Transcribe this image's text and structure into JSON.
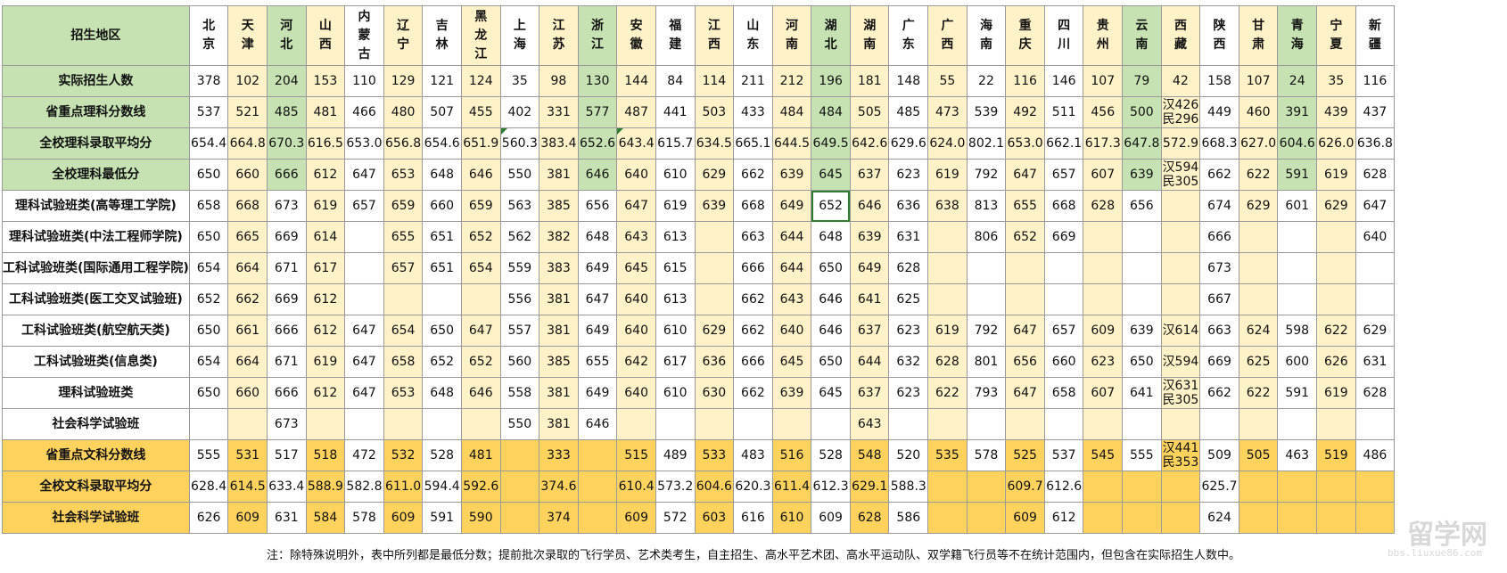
{
  "header_label": "招生地区",
  "regions": [
    [
      "北",
      "京"
    ],
    [
      "天",
      "津"
    ],
    [
      "河",
      "北"
    ],
    [
      "山",
      "西"
    ],
    [
      "内",
      "蒙",
      "古"
    ],
    [
      "辽",
      "宁"
    ],
    [
      "吉",
      "林"
    ],
    [
      "黑",
      "龙",
      "江"
    ],
    [
      "上",
      "海"
    ],
    [
      "江",
      "苏"
    ],
    [
      "浙",
      "江"
    ],
    [
      "安",
      "徽"
    ],
    [
      "福",
      "建"
    ],
    [
      "江",
      "西"
    ],
    [
      "山",
      "东"
    ],
    [
      "河",
      "南"
    ],
    [
      "湖",
      "北"
    ],
    [
      "湖",
      "南"
    ],
    [
      "广",
      "东"
    ],
    [
      "广",
      "西"
    ],
    [
      "海",
      "南"
    ],
    [
      "重",
      "庆"
    ],
    [
      "四",
      "川"
    ],
    [
      "贵",
      "州"
    ],
    [
      "云",
      "南"
    ],
    [
      "西",
      "藏"
    ],
    [
      "陕",
      "西"
    ],
    [
      "甘",
      "肃"
    ],
    [
      "青",
      "海"
    ],
    [
      "宁",
      "夏"
    ],
    [
      "新",
      "疆"
    ]
  ],
  "rows": [
    {
      "label": "实际招生人数",
      "values": [
        "378",
        "102",
        "204",
        "153",
        "110",
        "129",
        "121",
        "124",
        "35",
        "98",
        "130",
        "144",
        "84",
        "114",
        "211",
        "212",
        "196",
        "181",
        "148",
        "55",
        "22",
        "116",
        "146",
        "107",
        "79",
        "42",
        "158",
        "107",
        "24",
        "35",
        "116"
      ]
    },
    {
      "label": "省重点理科分数线",
      "values": [
        "537",
        "521",
        "485",
        "481",
        "466",
        "480",
        "507",
        "455",
        "402",
        "331",
        "577",
        "487",
        "441",
        "503",
        "433",
        "484",
        "484",
        "505",
        "485",
        "473",
        "539",
        "492",
        "511",
        "456",
        "500",
        "汉426\n民296",
        "449",
        "460",
        "391",
        "439",
        "437"
      ]
    },
    {
      "label": "全校理科录取平均分",
      "values": [
        "654.4",
        "664.8",
        "670.3",
        "616.5",
        "653.0",
        "656.8",
        "654.6",
        "651.9",
        "560.3",
        "383.4",
        "652.6",
        "643.4",
        "615.7",
        "634.5",
        "665.1",
        "644.5",
        "649.5",
        "642.6",
        "629.6",
        "624.0",
        "802.1",
        "653.0",
        "662.1",
        "617.3",
        "647.8",
        "572.9",
        "668.3",
        "627.0",
        "604.6",
        "626.0",
        "636.8"
      ]
    },
    {
      "label": "全校理科最低分",
      "values": [
        "650",
        "660",
        "666",
        "612",
        "647",
        "653",
        "648",
        "646",
        "550",
        "381",
        "646",
        "640",
        "610",
        "629",
        "662",
        "639",
        "645",
        "637",
        "623",
        "619",
        "792",
        "647",
        "657",
        "607",
        "639",
        "汉594\n民305",
        "662",
        "622",
        "591",
        "619",
        "628"
      ]
    },
    {
      "label": "理科试验班类(高等理工学院)",
      "values": [
        "658",
        "668",
        "673",
        "619",
        "657",
        "659",
        "660",
        "659",
        "563",
        "385",
        "656",
        "647",
        "619",
        "639",
        "668",
        "649",
        "652",
        "646",
        "636",
        "638",
        "813",
        "655",
        "668",
        "628",
        "656",
        "",
        "674",
        "629",
        "601",
        "629",
        "647"
      ]
    },
    {
      "label": "理科试验班类(中法工程师学院)",
      "values": [
        "650",
        "665",
        "669",
        "614",
        "",
        "655",
        "651",
        "652",
        "562",
        "382",
        "648",
        "643",
        "613",
        "",
        "663",
        "644",
        "648",
        "639",
        "631",
        "",
        "806",
        "652",
        "669",
        "",
        "",
        "",
        "666",
        "",
        "",
        "",
        "640"
      ]
    },
    {
      "label": "工科试验班类(国际通用工程学院)",
      "values": [
        "654",
        "664",
        "671",
        "617",
        "",
        "657",
        "651",
        "654",
        "559",
        "383",
        "649",
        "645",
        "615",
        "",
        "666",
        "644",
        "650",
        "649",
        "628",
        "",
        "",
        "",
        "",
        "",
        "",
        "",
        "673",
        "",
        "",
        "",
        ""
      ]
    },
    {
      "label": "工科试验班类(医工交叉试验班)",
      "values": [
        "652",
        "662",
        "669",
        "612",
        "",
        "",
        "",
        "",
        "556",
        "381",
        "647",
        "640",
        "613",
        "",
        "662",
        "643",
        "646",
        "641",
        "625",
        "",
        "",
        "",
        "",
        "",
        "",
        "",
        "667",
        "",
        "",
        "",
        ""
      ]
    },
    {
      "label": "工科试验班类(航空航天类)",
      "values": [
        "650",
        "661",
        "666",
        "612",
        "647",
        "654",
        "650",
        "647",
        "557",
        "381",
        "649",
        "640",
        "610",
        "629",
        "662",
        "640",
        "646",
        "637",
        "623",
        "619",
        "792",
        "647",
        "657",
        "609",
        "639",
        "汉614",
        "663",
        "624",
        "598",
        "622",
        "629"
      ]
    },
    {
      "label": "工科试验班类(信息类)",
      "values": [
        "654",
        "664",
        "671",
        "619",
        "647",
        "658",
        "652",
        "652",
        "560",
        "385",
        "655",
        "642",
        "617",
        "636",
        "666",
        "645",
        "650",
        "644",
        "632",
        "628",
        "801",
        "656",
        "660",
        "623",
        "650",
        "汉594",
        "669",
        "625",
        "600",
        "626",
        "631"
      ]
    },
    {
      "label": "理科试验班类",
      "values": [
        "650",
        "660",
        "666",
        "612",
        "647",
        "653",
        "648",
        "646",
        "558",
        "381",
        "649",
        "640",
        "610",
        "630",
        "662",
        "639",
        "645",
        "637",
        "623",
        "622",
        "793",
        "647",
        "658",
        "607",
        "641",
        "汉631\n民305",
        "662",
        "622",
        "591",
        "619",
        "628"
      ]
    },
    {
      "label": "社会科学试验班",
      "values": [
        "",
        "",
        "673",
        "",
        "",
        "",
        "",
        "",
        "550",
        "381",
        "646",
        "",
        "",
        "",
        "",
        "",
        "",
        "643",
        "",
        "",
        "",
        "",
        "",
        "",
        "",
        "",
        "",
        "",
        "",
        "",
        ""
      ]
    },
    {
      "label": "省重点文科分数线",
      "values": [
        "555",
        "531",
        "517",
        "518",
        "472",
        "532",
        "528",
        "481",
        "",
        "333",
        "",
        "515",
        "489",
        "533",
        "483",
        "516",
        "528",
        "548",
        "520",
        "535",
        "578",
        "525",
        "537",
        "545",
        "555",
        "汉441\n民353",
        "509",
        "505",
        "463",
        "519",
        "486"
      ]
    },
    {
      "label": "全校文科录取平均分",
      "values": [
        "628.4",
        "614.5",
        "633.4",
        "588.9",
        "582.8",
        "611.0",
        "594.4",
        "592.6",
        "",
        "374.6",
        "",
        "610.4",
        "573.2",
        "604.6",
        "620.3",
        "611.4",
        "612.3",
        "629.1",
        "588.3",
        "",
        "",
        "609.7",
        "612.6",
        "",
        "",
        "",
        "625.7",
        "",
        "",
        "",
        ""
      ]
    },
    {
      "label": "社会科学试验班",
      "values": [
        "626",
        "609",
        "631",
        "584",
        "578",
        "609",
        "591",
        "590",
        "",
        "374",
        "",
        "609",
        "572",
        "603",
        "616",
        "610",
        "609",
        "628",
        "586",
        "",
        "",
        "609",
        "612",
        "",
        "",
        "",
        "624",
        "",
        "",
        "",
        ""
      ]
    }
  ],
  "note": "注：除特殊说明外，表中所列都是最低分数；提前批次录取的飞行学员、艺术类考生，自主招生、高水平艺术团、高水平运动队、双学籍飞行员等不在统计范围内，但包含在实际招生人数中。",
  "watermark": {
    "text": "留学网",
    "url": "bbs.liuxue86.com"
  },
  "colors": {
    "label_green": "#c6e2b2",
    "label_orange": "#ffd25e",
    "stripe_yellow": "#fff1c8",
    "white": "#ffffff",
    "selection": "#2e7d32"
  }
}
